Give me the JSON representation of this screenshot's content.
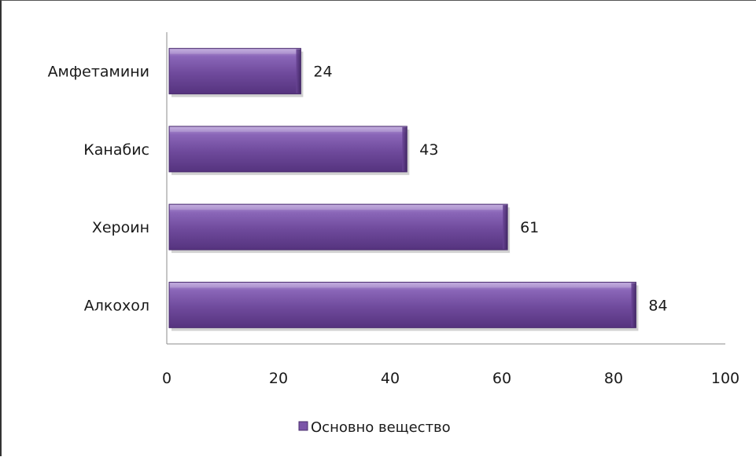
{
  "chart_data": {
    "type": "bar",
    "orientation": "horizontal",
    "categories": [
      "Алкохол",
      "Хероин",
      "Канабис",
      "Амфетамини"
    ],
    "series": [
      {
        "name": "Основно вещество",
        "values": [
          84,
          61,
          43,
          24
        ],
        "color": "#7b55a8"
      }
    ],
    "title": "",
    "xlabel": "",
    "ylabel": "",
    "xlim": [
      0,
      100
    ],
    "x_ticks": [
      0,
      20,
      40,
      60,
      80,
      100
    ],
    "data_labels": true,
    "grid": false,
    "legend_position": "bottom"
  }
}
